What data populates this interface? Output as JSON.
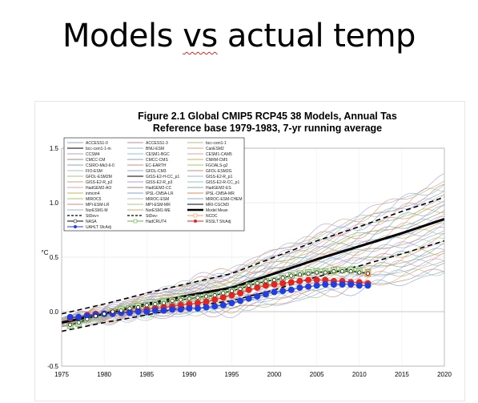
{
  "slide": {
    "title_part1": "Models ",
    "title_vs": "vs",
    "title_part2": " actual temp"
  },
  "chart_data": {
    "type": "line",
    "title": "Figure 2.1 Global CMIP5 RCP45 38 Models, Annual Tas",
    "subtitle": "Reference base 1979-1983, 7-yr running average",
    "xlabel": "",
    "ylabel": "°C",
    "xlim": [
      1975,
      2020
    ],
    "ylim": [
      -0.5,
      1.5
    ],
    "x_ticks": [
      1975,
      1980,
      1985,
      1990,
      1995,
      2000,
      2005,
      2010,
      2015,
      2020
    ],
    "y_ticks": [
      -0.5,
      0.0,
      0.5,
      1.0,
      1.5
    ],
    "y_tick_labels": [
      "-0.5",
      "0.0",
      "0.5",
      "1.0",
      "1.5"
    ],
    "grid": true,
    "legend_position": "top-left",
    "legend_entries": [
      "ACCESS1-0",
      "ACCESS1-3",
      "bcc-csm1-1",
      "bcc-csm1-1-m",
      "BNU-ESM",
      "CanESM2",
      "CCSM4",
      "CESM1-BGC",
      "CESM1-CAM5",
      "CMCC-CM",
      "CMCC-CMS",
      "CNRM-CM5",
      "CSIRO-Mk3-6-0",
      "EC-EARTH",
      "FGOALS-g2",
      "FIO-ESM",
      "GFDL-CM3",
      "GFDL-ESM2G",
      "GFDL-ESM2M",
      "GISS-E2-H-CC_p1",
      "GISS-E2-R_p1",
      "GISS-E2-R_p2",
      "GISS-E2-R_p3",
      "GISS-E2-R-CC_p1",
      "HadGEM2-AO",
      "HadGEM2-CC",
      "HadGEM2-ES",
      "inmcm4",
      "IPSL-CM5A-LR",
      "IPSL-CM5A-MR",
      "MIROC5",
      "MIROC-ESM",
      "MIROC-ESM-CHEM",
      "MPI-ESM-LR",
      "MPI-ESM-MR",
      "MRI-CGCM3",
      "NorESM1-M",
      "NorESM1-ME",
      "Model Mean",
      "StDev+",
      "StDev-",
      "NCDC",
      "NASA",
      "HadCRUT4",
      "RSSLT SfcAdj",
      "UAHLT SfcAdj"
    ],
    "x": [
      1976,
      1977,
      1978,
      1979,
      1980,
      1981,
      1982,
      1983,
      1984,
      1985,
      1986,
      1987,
      1988,
      1989,
      1990,
      1991,
      1992,
      1993,
      1994,
      1995,
      1996,
      1997,
      1998,
      1999,
      2000,
      2001,
      2002,
      2003,
      2004,
      2005,
      2006,
      2007,
      2008,
      2009,
      2010,
      2011
    ],
    "series": [
      {
        "name": "Model Mean",
        "color": "#000000",
        "style": "thick",
        "x": [
          1975,
          1980,
          1985,
          1990,
          1995,
          2000,
          2005,
          2010,
          2015,
          2020
        ],
        "values": [
          -0.1,
          -0.02,
          0.07,
          0.15,
          0.22,
          0.35,
          0.48,
          0.6,
          0.72,
          0.85
        ]
      },
      {
        "name": "StDev+",
        "color": "#000000",
        "style": "dashed",
        "x": [
          1975,
          1980,
          1985,
          1990,
          1995,
          2000,
          2005,
          2010,
          2015,
          2020
        ],
        "values": [
          -0.02,
          0.07,
          0.17,
          0.26,
          0.35,
          0.5,
          0.65,
          0.78,
          0.92,
          1.05
        ]
      },
      {
        "name": "StDev-",
        "color": "#000000",
        "style": "dashed",
        "x": [
          1975,
          1980,
          1985,
          1990,
          1995,
          2000,
          2005,
          2010,
          2015,
          2020
        ],
        "values": [
          -0.18,
          -0.1,
          -0.03,
          0.05,
          0.1,
          0.2,
          0.32,
          0.42,
          0.53,
          0.65
        ]
      },
      {
        "name": "HadCRUT4",
        "color": "#6ab04c",
        "marker": "square",
        "values": [
          -0.13,
          -0.11,
          -0.07,
          -0.03,
          -0.02,
          0.0,
          0.02,
          0.03,
          0.05,
          0.06,
          0.07,
          0.09,
          0.1,
          0.11,
          0.12,
          0.13,
          0.14,
          0.15,
          0.17,
          0.19,
          0.21,
          0.24,
          0.26,
          0.28,
          0.29,
          0.31,
          0.33,
          0.35,
          0.36,
          0.37,
          0.37,
          0.38,
          0.38,
          0.38,
          0.37,
          0.36
        ]
      },
      {
        "name": "NCDC",
        "color": "#f0a060",
        "marker": "square",
        "x": [
          2011
        ],
        "values": [
          0.35
        ]
      },
      {
        "name": "RSSLT SfcAdj",
        "color": "#e8231f",
        "marker": "dot",
        "values": [
          -0.06,
          -0.05,
          -0.03,
          -0.02,
          -0.02,
          -0.01,
          -0.01,
          0.0,
          0.01,
          0.02,
          0.03,
          0.04,
          0.05,
          0.06,
          0.07,
          0.08,
          0.09,
          0.11,
          0.13,
          0.15,
          0.17,
          0.2,
          0.22,
          0.24,
          0.25,
          0.26,
          0.27,
          0.28,
          0.29,
          0.29,
          0.29,
          0.28,
          0.28,
          0.27,
          0.27,
          0.26
        ]
      },
      {
        "name": "UAHLT SfcAdj",
        "color": "#1f3fe0",
        "marker": "dot",
        "values": [
          -0.05,
          -0.05,
          -0.04,
          -0.03,
          -0.02,
          -0.02,
          -0.01,
          -0.01,
          0.0,
          0.0,
          0.01,
          0.01,
          0.02,
          0.02,
          0.03,
          0.03,
          0.04,
          0.05,
          0.06,
          0.08,
          0.1,
          0.12,
          0.14,
          0.16,
          0.18,
          0.19,
          0.2,
          0.22,
          0.23,
          0.24,
          0.25,
          0.25,
          0.25,
          0.25,
          0.24,
          0.24
        ]
      },
      {
        "name": "NASA",
        "color": "#000000",
        "marker": "circle-open",
        "values": [
          -0.12,
          -0.1,
          -0.07,
          -0.04,
          -0.02,
          0.0,
          0.01,
          0.03,
          0.04,
          0.06,
          0.07,
          0.08,
          0.1,
          0.11,
          0.12,
          0.13,
          0.14,
          0.15,
          0.17,
          0.19,
          0.21,
          0.24,
          0.26,
          0.28,
          0.29,
          0.31,
          0.33,
          0.34,
          0.35,
          0.36,
          0.36,
          0.37,
          0.37,
          0.37,
          0.36,
          0.35
        ]
      }
    ],
    "model_spaghetti_2020_range": [
      0.35,
      1.22
    ]
  }
}
